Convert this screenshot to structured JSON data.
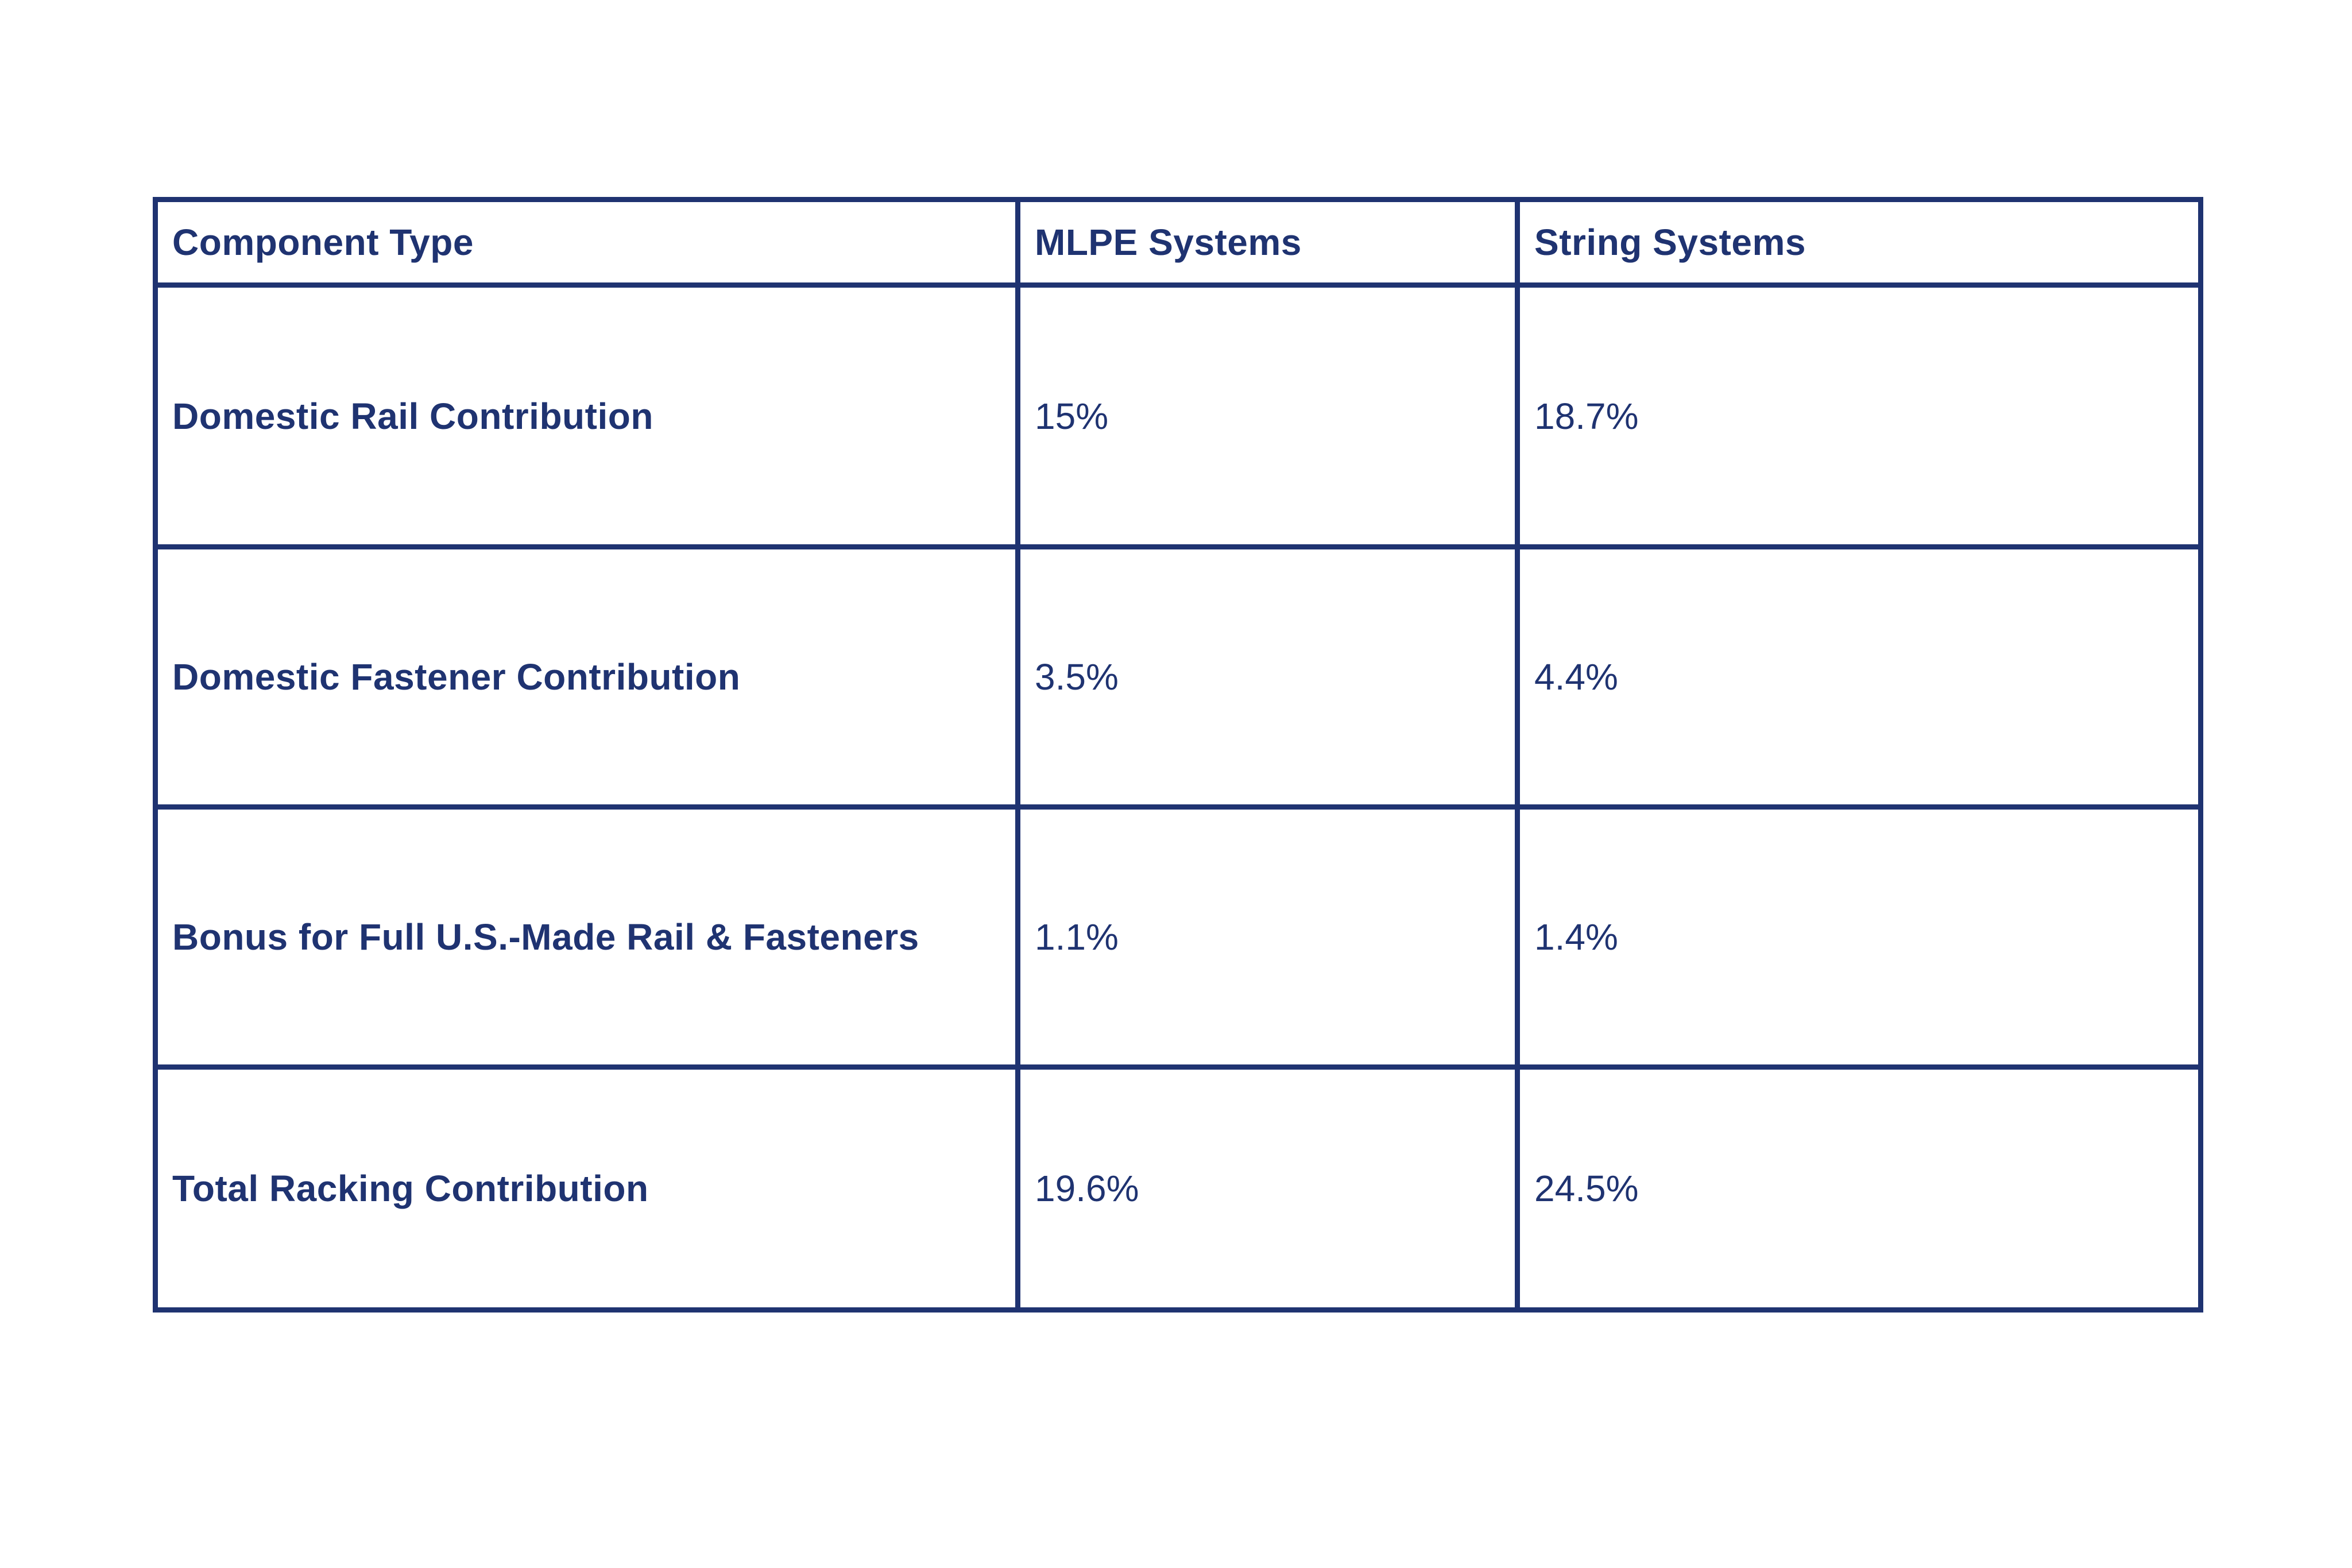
{
  "colors": {
    "accent_navy": "#1F3371",
    "background": "#ffffff"
  },
  "chart_data": {
    "type": "table",
    "columns": [
      "Component Type",
      "MLPE Systems",
      "String Systems"
    ],
    "rows": [
      [
        "Domestic Rail Contribution",
        "15%",
        "18.7%"
      ],
      [
        "Domestic Fastener Contribution",
        "3.5%",
        "4.4%"
      ],
      [
        "Bonus for Full U.S.-Made Rail & Fasteners",
        "1.1%",
        "1.4%"
      ],
      [
        "Total Racking Contribution",
        "19.6%",
        "24.5%"
      ]
    ],
    "values_numeric": {
      "mlpe_systems_pct": [
        15,
        3.5,
        1.1,
        19.6
      ],
      "string_systems_pct": [
        18.7,
        4.4,
        1.4,
        24.5
      ]
    },
    "title": "",
    "legend_position": "none",
    "grid": "full-borders"
  }
}
